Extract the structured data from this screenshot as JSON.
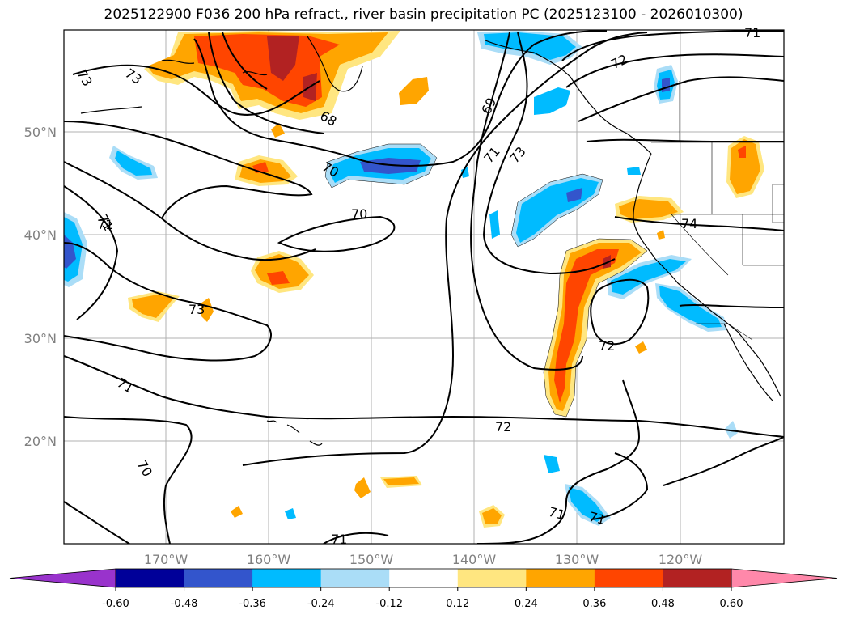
{
  "title": "2025122900 F036 200 hPa refract., river basin precipitation PC (2025123100 - 2026010300)",
  "lat_labels": [
    "50°N",
    "40°N",
    "30°N",
    "20°N"
  ],
  "lon_labels": [
    "170°W",
    "160°W",
    "150°W",
    "140°W",
    "130°W",
    "120°W"
  ],
  "colorbar": {
    "ticks": [
      "-0.60",
      "-0.48",
      "-0.36",
      "-0.24",
      "-0.12",
      "0.12",
      "0.24",
      "0.36",
      "0.48",
      "0.60"
    ],
    "colors": [
      "#9933cc",
      "#000099",
      "#3355cc",
      "#00bbff",
      "#aaddf7",
      "#ffffff",
      "#ffe680",
      "#ffa500",
      "#ff4500",
      "#b22222",
      "#ff88aa"
    ]
  },
  "contour_labels": [
    "73",
    "73",
    "73",
    "71",
    "71",
    "70",
    "71",
    "70",
    "68",
    "70",
    "69",
    "71",
    "73",
    "72",
    "71",
    "74",
    "72",
    "72",
    "71",
    "71",
    "71"
  ]
}
